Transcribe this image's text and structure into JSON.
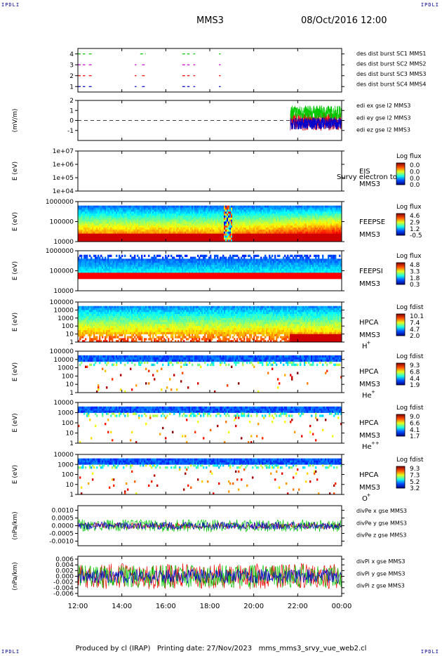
{
  "corners": {
    "left": "IPDLI",
    "right": "IPDLI"
  },
  "header": {
    "spacecraft": "MMS3",
    "datetime": "08/Oct/2016 12:00"
  },
  "footer": {
    "produced": "Produced by cl (IRAP)",
    "printing": "Printing date: 27/Nov/2023",
    "file": "mms_mms3_srvy_vue_web2.cl"
  },
  "colors": {
    "green": "#00c800",
    "red": "#ee0000",
    "blue": "#0000cc",
    "magenta": "#cc00cc"
  },
  "x_axis": {
    "ticks": [
      "12:00",
      "14:00",
      "16:00",
      "18:00",
      "20:00",
      "22:00",
      "00:00"
    ]
  },
  "chart_data": [
    {
      "type": "line",
      "id": "burst",
      "yticks": [
        "1",
        "2",
        "3",
        "4"
      ],
      "ylim": [
        0.5,
        4.5
      ],
      "series": [
        {
          "name": "des dist burst SC1 MMS1",
          "color": "#00c800",
          "level": 4,
          "intervals": [
            [
              "12:00",
              "12:20"
            ],
            [
              "12:30",
              "12:38"
            ],
            [
              "14:50",
              "15:05"
            ],
            [
              "16:45",
              "17:05"
            ],
            [
              "17:15",
              "17:20"
            ],
            [
              "18:25",
              "18:30"
            ]
          ]
        },
        {
          "name": "des dist burst SC2 MMS2",
          "color": "#cc00cc",
          "level": 3,
          "intervals": [
            [
              "12:00",
              "12:20"
            ],
            [
              "12:30",
              "12:38"
            ],
            [
              "14:35",
              "14:40"
            ],
            [
              "14:55",
              "15:05"
            ],
            [
              "16:45",
              "17:05"
            ],
            [
              "17:15",
              "17:20"
            ],
            [
              "18:25",
              "18:30"
            ]
          ]
        },
        {
          "name": "des dist burst SC3 MMS3",
          "color": "#ee0000",
          "level": 2,
          "intervals": [
            [
              "12:00",
              "12:20"
            ],
            [
              "12:30",
              "12:38"
            ],
            [
              "14:35",
              "14:40"
            ],
            [
              "14:55",
              "15:05"
            ],
            [
              "16:45",
              "17:05"
            ],
            [
              "17:15",
              "17:20"
            ],
            [
              "18:25",
              "18:30"
            ]
          ]
        },
        {
          "name": "des dist burst SC4 MMS4",
          "color": "#0000cc",
          "level": 1,
          "intervals": [
            [
              "12:00",
              "12:20"
            ],
            [
              "12:30",
              "12:38"
            ],
            [
              "14:35",
              "14:40"
            ],
            [
              "14:55",
              "15:05"
            ],
            [
              "16:45",
              "17:05"
            ],
            [
              "17:15",
              "17:20"
            ],
            [
              "18:25",
              "18:30"
            ]
          ]
        }
      ]
    },
    {
      "type": "line",
      "id": "efield",
      "ylabel": "(mV/m)",
      "yticks": [
        "-1",
        "0",
        "1",
        "2"
      ],
      "ylim": [
        -2,
        2
      ],
      "data_start": "21:40",
      "series": [
        {
          "name": "edi ex gse l2 MMS3",
          "color": "#ee0000",
          "level": -0.1,
          "spread": 0.9
        },
        {
          "name": "edi ey gse l2 MMS3",
          "color": "#00c800",
          "level": 0.8,
          "spread": 0.7
        },
        {
          "name": "edi ez gse l2 MMS3",
          "color": "#0000cc",
          "level": -0.3,
          "spread": 0.6
        }
      ]
    },
    {
      "type": "heatmap",
      "id": "eis",
      "ylabel": "E (eV)",
      "yticks": [
        "1e+04",
        "1e+05",
        "1e+06",
        "1e+07"
      ],
      "ylim": [
        10000,
        10000000
      ],
      "label": [
        "EIS",
        "MMS3"
      ],
      "overlay": "Survy electron to",
      "colorbar": {
        "title": "Log flux",
        "values": [
          "0.0",
          "0.0",
          "0.0",
          "0.0"
        ]
      },
      "empty": true
    },
    {
      "type": "heatmap",
      "id": "feepse",
      "ylabel": "E (eV)",
      "yticks": [
        "10000",
        "100000",
        "1000000"
      ],
      "ylim": [
        10000,
        1000000
      ],
      "label": [
        "FEEPSE",
        "MMS3"
      ],
      "colorbar": {
        "title": "Log flux",
        "values": [
          "4.6",
          "2.9",
          "1.2",
          "-0.5"
        ]
      }
    },
    {
      "type": "heatmap",
      "id": "feepsi",
      "ylabel": "E (eV)",
      "yticks": [
        "10000",
        "100000",
        "1000000"
      ],
      "ylim": [
        10000,
        1000000
      ],
      "label": [
        "FEEPSI",
        "MMS3"
      ],
      "colorbar": {
        "title": "Log flux",
        "values": [
          "4.8",
          "3.3",
          "1.8",
          "0.3"
        ]
      }
    },
    {
      "type": "heatmap",
      "id": "hpca-h",
      "ylabel": "E (eV)",
      "yticks": [
        "1",
        "10",
        "100",
        "1000",
        "10000",
        "100000"
      ],
      "ylim": [
        1,
        100000
      ],
      "label": [
        "HPCA",
        "MMS3",
        "H",
        "+"
      ],
      "colorbar": {
        "title": "Log fdist",
        "values": [
          "10.1",
          "7.4",
          "4.7",
          "2.0"
        ]
      }
    },
    {
      "type": "heatmap",
      "id": "hpca-he",
      "ylabel": "E (eV)",
      "yticks": [
        "1",
        "10",
        "100",
        "1000",
        "10000",
        "100000"
      ],
      "ylim": [
        1,
        100000
      ],
      "label": [
        "HPCA",
        "MMS3",
        "He",
        "+"
      ],
      "colorbar": {
        "title": "Log fdist",
        "values": [
          "9.3",
          "6.8",
          "4.4",
          "1.9"
        ]
      }
    },
    {
      "type": "heatmap",
      "id": "hpca-hepp",
      "ylabel": "E (eV)",
      "yticks": [
        "1",
        "10",
        "100",
        "1000",
        "10000"
      ],
      "ylim": [
        1,
        10000
      ],
      "label": [
        "HPCA",
        "MMS3",
        "He",
        "++"
      ],
      "colorbar": {
        "title": "Log fdist",
        "values": [
          "9.0",
          "6.6",
          "4.1",
          "1.7"
        ]
      }
    },
    {
      "type": "heatmap",
      "id": "hpca-o",
      "ylabel": "E (eV)",
      "yticks": [
        "1",
        "10",
        "100",
        "1000",
        "10000"
      ],
      "ylim": [
        1,
        10000
      ],
      "label": [
        "HPCA",
        "MMS3",
        "O",
        "+"
      ],
      "colorbar": {
        "title": "Log fdist",
        "values": [
          "9.3",
          "7.3",
          "5.2",
          "3.2"
        ]
      }
    },
    {
      "type": "line",
      "id": "divpe",
      "ylabel": "(nPa/km)",
      "yticks": [
        "-0.0010",
        "-0.0005",
        "0.0000",
        "0.0005",
        "0.0010"
      ],
      "ylim": [
        -0.0013,
        0.0013
      ],
      "series": [
        {
          "name": "divPe x gse MMS3",
          "color": "#ee0000",
          "level": 0.0,
          "spread": 0.0002
        },
        {
          "name": "divPe y gse MMS3",
          "color": "#00c800",
          "level": 0.0,
          "spread": 0.0004
        },
        {
          "name": "divPe z gse MMS3",
          "color": "#0000cc",
          "level": 0.0,
          "spread": 0.00025
        }
      ]
    },
    {
      "type": "line",
      "id": "divpi",
      "ylabel": "(nPa/km)",
      "yticks": [
        "-0.006",
        "-0.004",
        "-0.002",
        "0.000",
        "0.002",
        "0.004",
        "0.006"
      ],
      "ylim": [
        -0.007,
        0.007
      ],
      "series": [
        {
          "name": "divPi x gse MMS3",
          "color": "#ee0000",
          "level": 0.0,
          "spread": 0.0045
        },
        {
          "name": "divPi y gse MMS3",
          "color": "#00c800",
          "level": 0.0,
          "spread": 0.004
        },
        {
          "name": "divPi z gse MMS3",
          "color": "#0000cc",
          "level": 0.0,
          "spread": 0.0025
        }
      ]
    }
  ]
}
